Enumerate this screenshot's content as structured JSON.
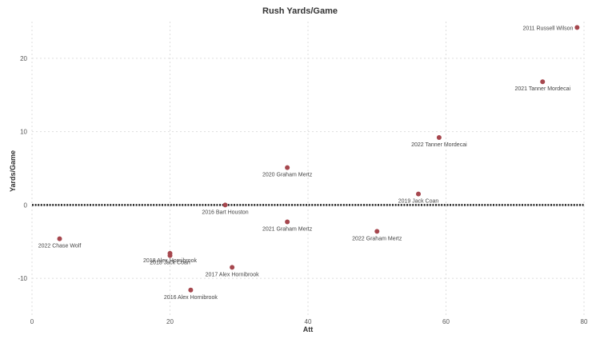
{
  "chart_data": {
    "type": "scatter",
    "title": "Rush Yards/Game",
    "xlabel": "Att",
    "ylabel": "Yards/Game",
    "xlim": [
      0,
      80
    ],
    "ylim": [
      -15,
      25
    ],
    "xticks": [
      0,
      20,
      40,
      60,
      80
    ],
    "yticks": [
      -10,
      0,
      10,
      20
    ],
    "grid": true,
    "reference_line": {
      "y": 0,
      "style": "dotted"
    },
    "marker_color": "#a6474e",
    "points": [
      {
        "label": "2011 Russell Wilson",
        "x": 79,
        "y": 24.2
      },
      {
        "label": "2021 Tanner Mordecai",
        "x": 74,
        "y": 16.8
      },
      {
        "label": "2022 Tanner Mordecai",
        "x": 59,
        "y": 9.2
      },
      {
        "label": "2020 Graham Mertz",
        "x": 37,
        "y": 5.1
      },
      {
        "label": "2019 Jack Coan",
        "x": 56,
        "y": 1.5
      },
      {
        "label": "2016 Bart Houston",
        "x": 28,
        "y": 0
      },
      {
        "label": "2021 Graham Mertz",
        "x": 37,
        "y": -2.3
      },
      {
        "label": "2022 Graham Mertz",
        "x": 50,
        "y": -3.6
      },
      {
        "label": "2022 Chase Wolf",
        "x": 4,
        "y": -4.6
      },
      {
        "label": "2018 Alex Hornibrook",
        "x": 20,
        "y": -6.6
      },
      {
        "label": "2018 Jack Coan",
        "x": 20,
        "y": -6.9
      },
      {
        "label": "2017 Alex Hornibrook",
        "x": 29,
        "y": -8.5
      },
      {
        "label": "2016 Alex Hornibrook",
        "x": 23,
        "y": -11.6
      }
    ]
  }
}
